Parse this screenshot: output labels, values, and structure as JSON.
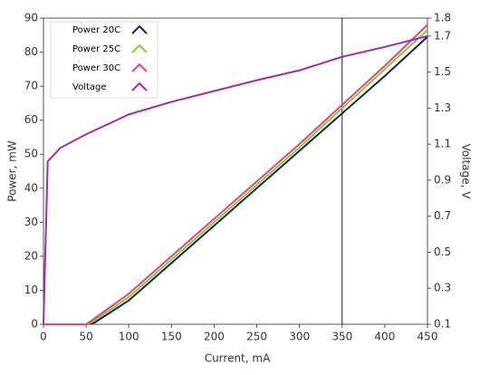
{
  "chart_data": {
    "type": "line",
    "x_label": "Current, mA",
    "y_label": "Power, mW",
    "y2_label": "Voltage, V",
    "xlim": [
      0,
      450
    ],
    "xticks": [
      0,
      50,
      100,
      150,
      200,
      250,
      300,
      350,
      400,
      450
    ],
    "ylim": [
      0,
      90
    ],
    "yticks": [
      0,
      10,
      20,
      30,
      40,
      50,
      60,
      70,
      80,
      90
    ],
    "y2lim": [
      0.1,
      1.8
    ],
    "y2ticks": [
      0.1,
      0.3,
      0.5,
      0.7,
      0.9,
      1.1,
      1.3,
      1.5,
      1.7,
      1.8
    ],
    "grid": false,
    "legend": "top-left",
    "cursor_x": 350,
    "series": [
      {
        "name": "Power 20C",
        "color": "#1b1f5c",
        "x": [
          0,
          50,
          60,
          100,
          150,
          200,
          250,
          300,
          350,
          400,
          450
        ],
        "values": [
          0,
          0,
          0.5,
          7,
          18,
          29,
          40,
          51,
          62,
          73,
          84.5
        ]
      },
      {
        "name": "Power 25C",
        "color": "#7fcf3a",
        "x": [
          0,
          50,
          58,
          100,
          150,
          200,
          250,
          300,
          350,
          400,
          450
        ],
        "values": [
          0,
          0,
          0.8,
          8,
          19,
          30,
          41,
          52,
          63.5,
          75,
          86.5
        ]
      },
      {
        "name": "Power 30C",
        "color": "#e3457d",
        "x": [
          0,
          50,
          56,
          100,
          150,
          200,
          250,
          300,
          350,
          400,
          450
        ],
        "values": [
          0,
          0,
          1,
          9,
          20,
          31,
          42,
          53,
          64.5,
          76,
          88
        ]
      },
      {
        "name": "Voltage",
        "color": "#9b2fa8",
        "axis": "y2",
        "x": [
          0,
          5,
          20,
          50,
          100,
          150,
          200,
          250,
          300,
          350,
          400,
          450
        ],
        "values": [
          0.1,
          1.005,
          1.08,
          1.155,
          1.265,
          1.335,
          1.395,
          1.455,
          1.51,
          1.585,
          1.64,
          1.7
        ]
      }
    ]
  }
}
